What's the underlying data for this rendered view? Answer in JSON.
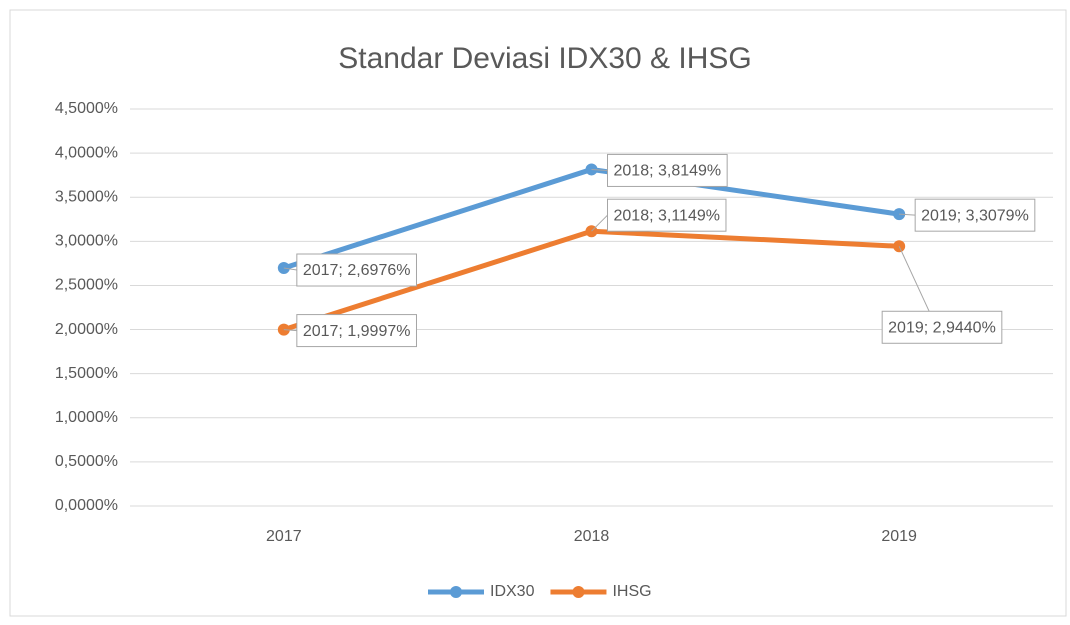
{
  "chart_data": {
    "type": "line",
    "title": "Standar Deviasi IDX30 & IHSG",
    "categories": [
      "2017",
      "2018",
      "2019"
    ],
    "series": [
      {
        "name": "IDX30",
        "color": "#5b9bd5",
        "values": [
          2.6976,
          3.8149,
          3.3079
        ],
        "value_labels": [
          "2017; 2,6976%",
          "2018; 3,8149%",
          "2019; 3,3079%"
        ]
      },
      {
        "name": "IHSG",
        "color": "#ed7d31",
        "values": [
          1.9997,
          3.1149,
          2.944
        ],
        "value_labels": [
          "2017; 1,9997%",
          "2018; 3,1149%",
          "2019; 2,9440%"
        ]
      }
    ],
    "ylim": [
      0,
      4.5
    ],
    "yticks": [
      {
        "value": 0,
        "label": "0,0000%"
      },
      {
        "value": 0.5,
        "label": "0,5000%"
      },
      {
        "value": 1,
        "label": "1,0000%"
      },
      {
        "value": 1.5,
        "label": "1,5000%"
      },
      {
        "value": 2,
        "label": "2,0000%"
      },
      {
        "value": 2.5,
        "label": "2,5000%"
      },
      {
        "value": 3,
        "label": "3,0000%"
      },
      {
        "value": 3.5,
        "label": "3,5000%"
      },
      {
        "value": 4,
        "label": "4,0000%"
      },
      {
        "value": 4.5,
        "label": "4,5000%"
      }
    ],
    "grid": true,
    "legend": "bottom"
  }
}
